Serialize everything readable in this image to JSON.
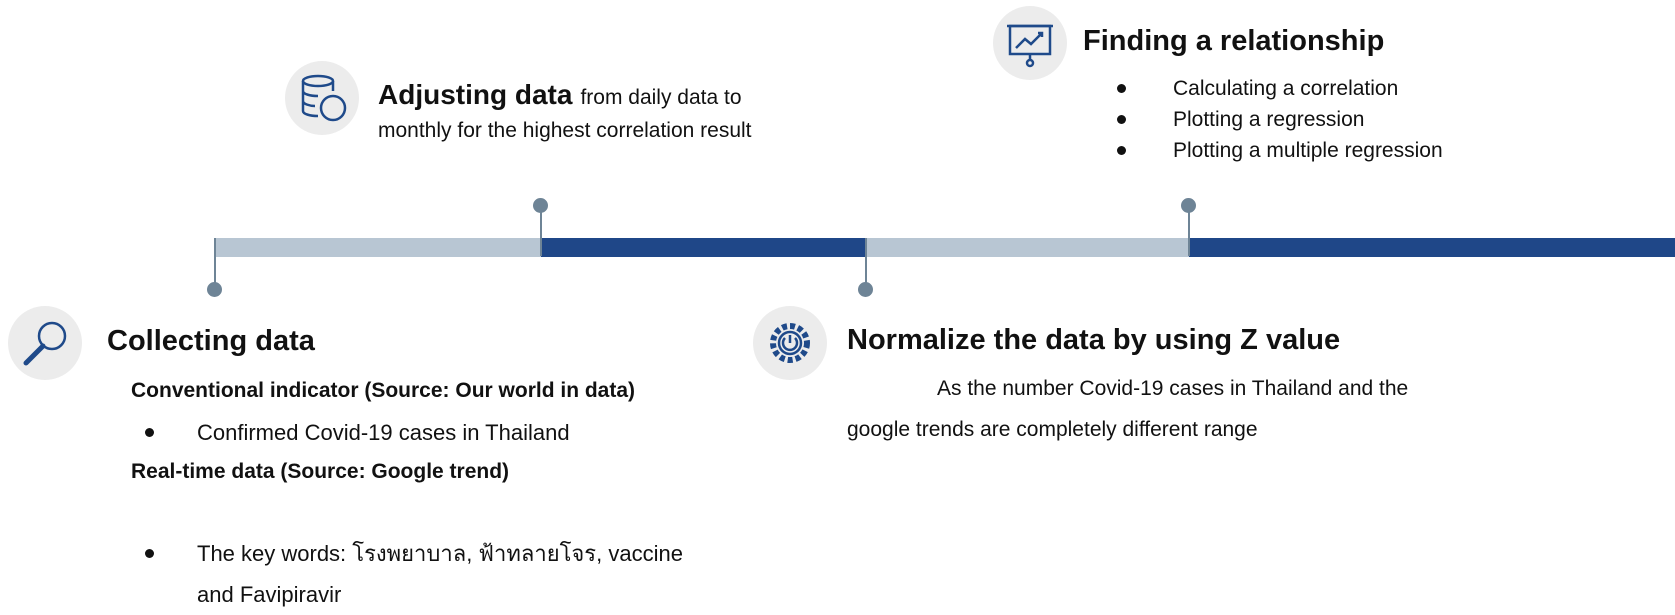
{
  "steps": [
    {
      "title": "Collecting data",
      "sections": [
        {
          "heading": "Conventional indicator (Source: Our world in data)",
          "bullets": [
            "Confirmed Covid-19 cases in Thailand"
          ]
        },
        {
          "heading": "Real-time data (Source: Google trend)",
          "bullets": [
            "The key words: โรงพยาบาล, ฟ้าทลายโจร, vaccine and Favipiravir"
          ]
        }
      ]
    },
    {
      "title": "Adjusting data",
      "text": "from daily data to monthly for the highest correlation result"
    },
    {
      "title": "Normalize the data by using Z value",
      "text": "As the number Covid-19 cases in Thailand and the google trends are completely different range"
    },
    {
      "title": "Finding a relationship",
      "bullets": [
        "Calculating a correlation",
        "Plotting a regression",
        "Plotting a multiple regression"
      ]
    }
  ]
}
